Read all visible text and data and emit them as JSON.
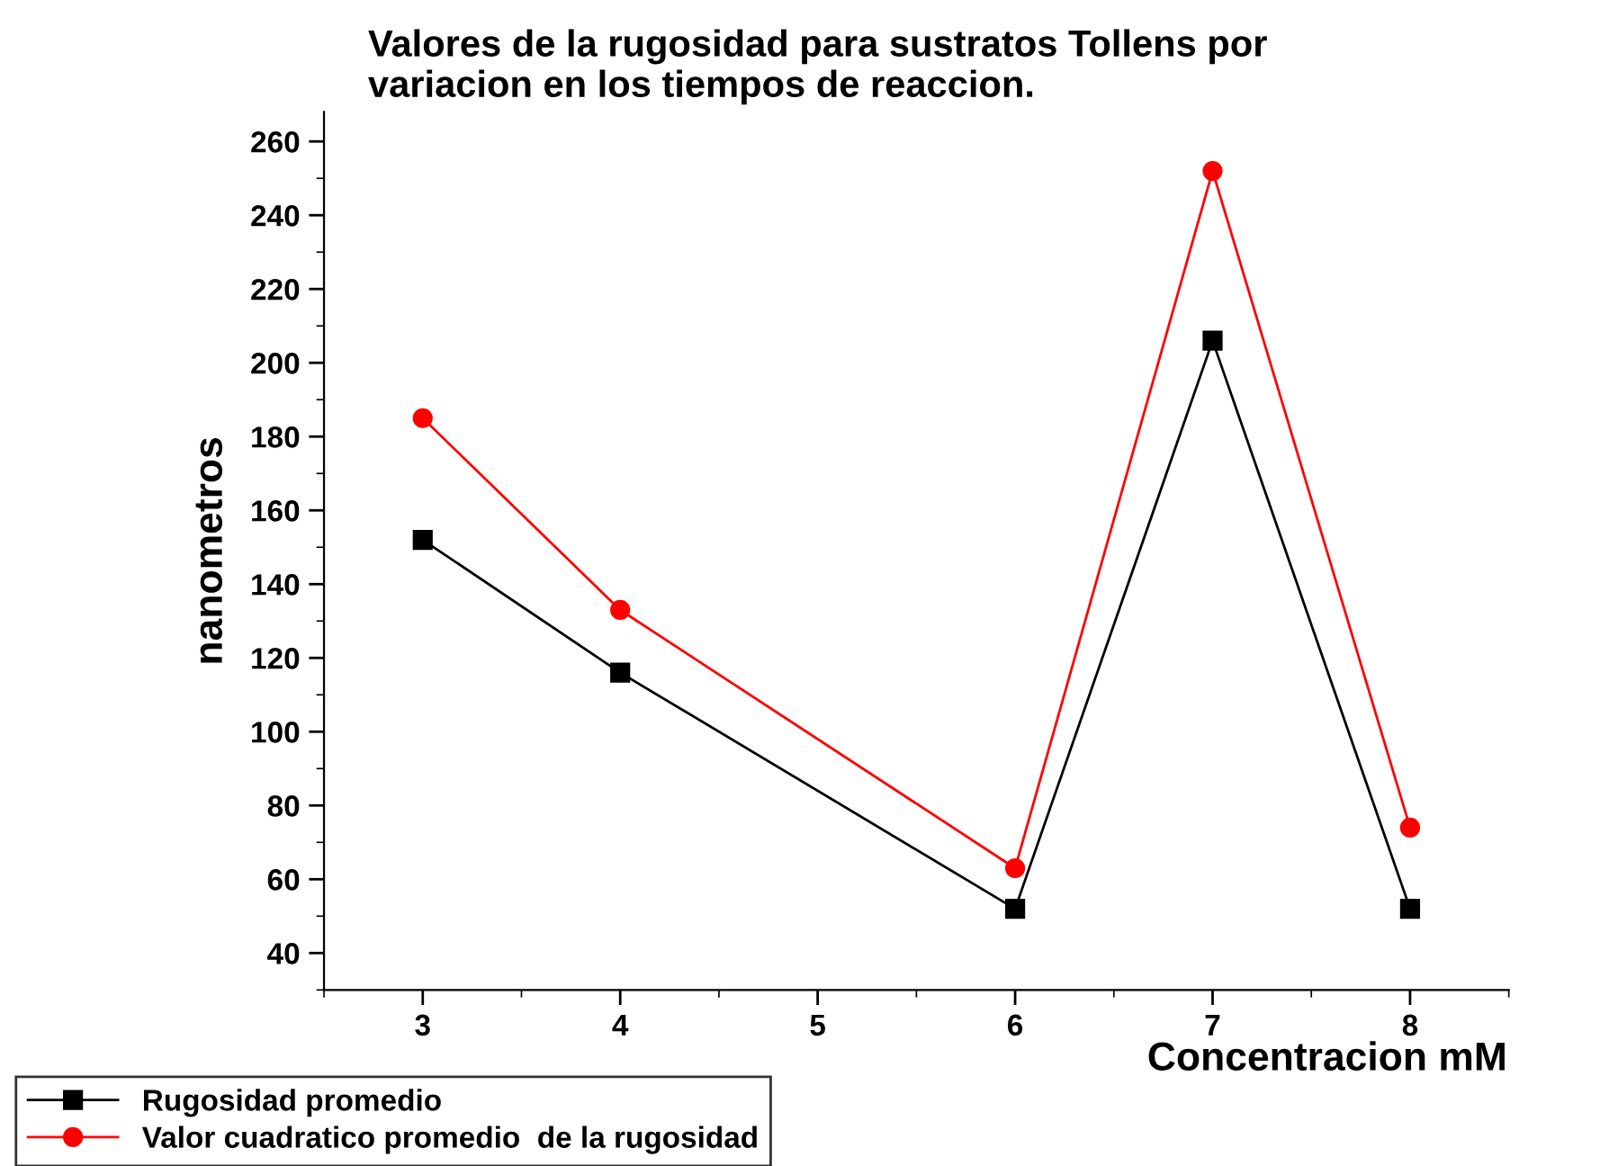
{
  "chart_data": {
    "type": "line",
    "title": "Valores de la rugosidad para sustratos Tollens por\nvariacion en los tiempos de reaccion.",
    "xlabel": "Concentracion mM",
    "ylabel": "nanometros",
    "x": [
      3,
      4,
      6,
      7,
      8
    ],
    "series": [
      {
        "name": "Rugosidad promedio",
        "color": "#000000",
        "marker": "square",
        "values": [
          152,
          116,
          52,
          206,
          52
        ]
      },
      {
        "name": "Valor cuadratico promedio  de la rugosidad",
        "color": "#ff0000",
        "marker": "circle",
        "values": [
          185,
          133,
          63,
          252,
          74
        ]
      }
    ],
    "xlim": [
      2.5,
      8.5
    ],
    "xticks": [
      3,
      4,
      5,
      6,
      7,
      8
    ],
    "ylim": [
      30,
      268
    ],
    "yticks": [
      40,
      60,
      80,
      100,
      120,
      140,
      160,
      180,
      200,
      220,
      240,
      260
    ],
    "grid": false,
    "legend": "bottom left",
    "line_style": "solid"
  }
}
